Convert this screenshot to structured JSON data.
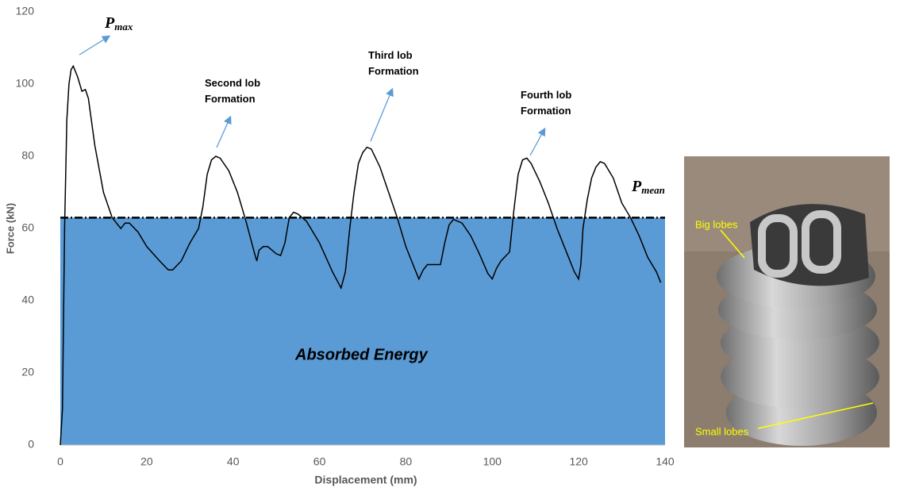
{
  "chart_data": {
    "type": "line",
    "x_label": "Displacement (mm)",
    "y_label": "Force (kN)",
    "xlim": [
      0,
      140
    ],
    "xticks": [
      0,
      20,
      40,
      60,
      80,
      100,
      120,
      140
    ],
    "ylim": [
      0,
      120
    ],
    "yticks": [
      0,
      20,
      40,
      60,
      80,
      100,
      120
    ],
    "fill_color": "#5b9bd5",
    "mean_value": 63,
    "mean_label": {
      "base": "P",
      "sub": "mean"
    },
    "max_label": {
      "base": "P",
      "sub": "max"
    },
    "fill_label": "Absorbed Energy",
    "annotations": [
      "Second lob Formation",
      "Third lob Formation",
      "Fourth lob Formation"
    ],
    "photo_labels": [
      "Big lobes",
      "Small lobes"
    ],
    "series": [
      {
        "color": "#000000",
        "x": [
          0,
          0.5,
          1,
          1.5,
          2,
          2.5,
          3,
          4,
          5,
          5.8,
          6.5,
          8,
          10,
          12,
          14,
          15,
          16,
          18,
          20,
          23,
          25,
          26,
          28,
          30,
          32,
          33,
          34,
          35,
          36,
          37,
          39,
          41,
          43,
          45,
          45.5,
          46,
          47,
          48,
          49,
          50,
          51,
          52,
          53,
          54,
          55,
          57,
          60,
          63,
          65,
          66,
          67,
          68,
          69,
          70,
          71,
          72,
          74,
          76,
          78,
          80,
          82,
          83,
          84,
          85,
          87,
          88,
          89,
          90,
          91,
          93,
          95,
          97,
          99,
          100,
          101,
          102,
          104,
          105,
          106,
          107,
          108,
          109,
          111,
          113,
          115,
          117,
          119,
          120,
          120.5,
          121,
          122,
          123,
          124,
          125,
          126,
          128,
          130,
          132,
          134,
          136,
          138,
          139
        ],
        "values": [
          0,
          10,
          60,
          90,
          100,
          104,
          105,
          102,
          98,
          98.5,
          96,
          83,
          70,
          63,
          60,
          61.5,
          61.5,
          59,
          55,
          51,
          48.5,
          48.5,
          51,
          56,
          60,
          66,
          75,
          79,
          80,
          79.5,
          76,
          70,
          62,
          53,
          51,
          54,
          55,
          55,
          54,
          53,
          52.5,
          56,
          63,
          64.5,
          64,
          62,
          56,
          48,
          43.5,
          48,
          60,
          70,
          78,
          81,
          82.5,
          82,
          77,
          70,
          63,
          55,
          49,
          46,
          48.5,
          50,
          50,
          50,
          56,
          61,
          62.5,
          61.5,
          58,
          53,
          47.5,
          46,
          49,
          51,
          53.5,
          65,
          75,
          79,
          79.5,
          78,
          73,
          67,
          60,
          54,
          48,
          46,
          50,
          60,
          68,
          74,
          77,
          78.5,
          78,
          74,
          67,
          63,
          58,
          52,
          48,
          45
        ]
      }
    ]
  }
}
